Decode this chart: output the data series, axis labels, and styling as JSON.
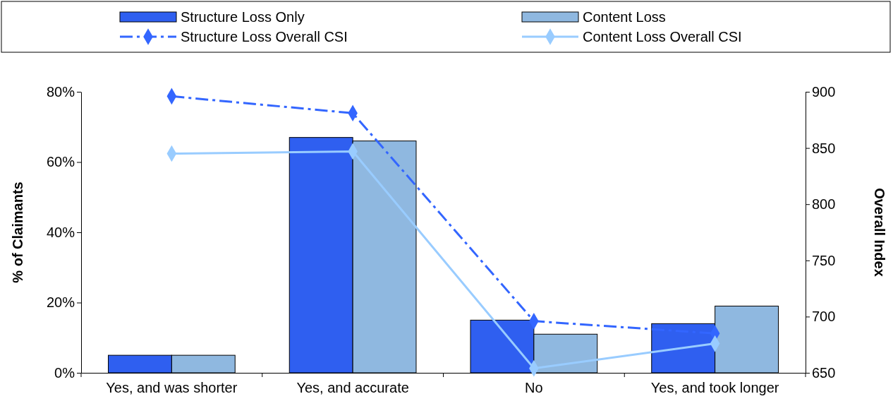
{
  "chart_data": {
    "type": "bar",
    "categories": [
      "Yes, and was shorter",
      "Yes, and accurate",
      "No",
      "Yes, and took longer"
    ],
    "ylabel": "% of Claimants",
    "y2label": "Overall Index",
    "ylim": [
      0,
      0.8
    ],
    "yticks": [
      {
        "value": 0,
        "label": "0%"
      },
      {
        "value": 0.2,
        "label": "20%"
      },
      {
        "value": 0.4,
        "label": "40%"
      },
      {
        "value": 0.6,
        "label": "60%"
      },
      {
        "value": 0.8,
        "label": "80%"
      }
    ],
    "y2lim": [
      650,
      900
    ],
    "y2ticks": [
      650,
      700,
      750,
      800,
      850,
      900
    ],
    "legend": "top",
    "grid": false,
    "marker": "diamond",
    "series": [
      {
        "name": "Structure Loss Only",
        "color": "#2f5ff0",
        "values": [
          0.05,
          0.67,
          0.15,
          0.14
        ]
      },
      {
        "name": "Content Loss",
        "color": "#8fb8e0",
        "values": [
          0.05,
          0.66,
          0.11,
          0.19
        ]
      },
      {
        "name": "Structure Loss Overall CSI",
        "type": "line",
        "axis": "y2",
        "line_style": "dashed",
        "color": "#3366ff",
        "values": [
          896,
          881,
          696,
          685
        ]
      },
      {
        "name": "Content Loss Overall CSI",
        "type": "line",
        "axis": "y2",
        "line_style": "solid",
        "color": "#99ccff",
        "values": [
          845,
          847,
          654,
          676
        ]
      }
    ]
  }
}
